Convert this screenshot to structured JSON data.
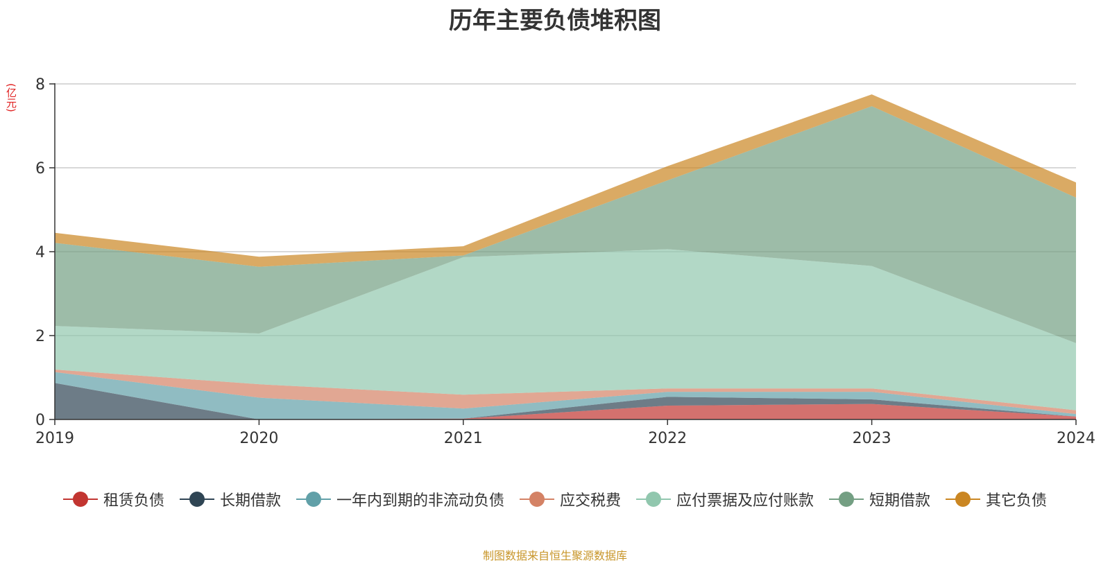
{
  "title": "历年主要负债堆积图",
  "unit_label": "(亿元)",
  "source_note": "制图数据来自恒生聚源数据库",
  "chart_data": {
    "type": "area",
    "stacked": true,
    "title": "历年主要负债堆积图",
    "ylabel": "(亿元)",
    "xlabel": "",
    "x": [
      "2019",
      "2020",
      "2021",
      "2022",
      "2023",
      "2024"
    ],
    "ylim": [
      0,
      8
    ],
    "yticks": [
      0,
      2,
      4,
      6,
      8
    ],
    "grid": true,
    "legend_position": "bottom",
    "series": [
      {
        "name": "租赁负债",
        "color": "#c23531",
        "values": [
          0,
          0,
          0.02,
          0.33,
          0.37,
          0.07
        ]
      },
      {
        "name": "长期借款",
        "color": "#2f4554",
        "values": [
          0.87,
          0,
          0,
          0.21,
          0.11,
          0
        ]
      },
      {
        "name": "一年内到期的非流动负债",
        "color": "#61a0a8",
        "values": [
          0.26,
          0.52,
          0.24,
          0.12,
          0.18,
          0.06
        ]
      },
      {
        "name": "应交税费",
        "color": "#d48265",
        "values": [
          0.06,
          0.32,
          0.33,
          0.08,
          0.08,
          0.09
        ]
      },
      {
        "name": "应付票据及应付账款",
        "color": "#91c7ae",
        "values": [
          1.04,
          1.21,
          3.28,
          3.32,
          2.92,
          1.6
        ]
      },
      {
        "name": "短期借款",
        "color": "#749f83",
        "values": [
          1.98,
          1.59,
          0.04,
          1.64,
          3.81,
          3.47
        ]
      },
      {
        "name": "其它负债",
        "color": "#ca8622",
        "values": [
          0.24,
          0.24,
          0.22,
          0.34,
          0.28,
          0.36
        ]
      }
    ]
  }
}
